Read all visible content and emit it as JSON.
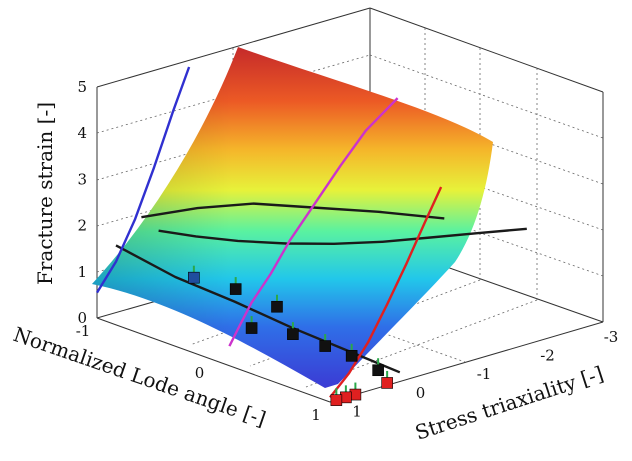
{
  "chart_data": {
    "type": "surface3d",
    "title": "",
    "zlabel": "Fracture strain [-]",
    "xlabel": "Stress triaxiality [-]",
    "ylabel": "Normalized Lode angle [-]",
    "z_ticks": [
      "0",
      "1",
      "2",
      "3",
      "4",
      "5"
    ],
    "x_ticks": [
      "-3",
      "-2",
      "-1",
      "0",
      "1"
    ],
    "y_ticks": [
      "-1",
      "0",
      "1"
    ],
    "z_range": [
      0,
      5
    ],
    "x_range": [
      1.3,
      -3
    ],
    "y_range": [
      -1,
      1
    ],
    "grid": true,
    "surface_colormap": "jet",
    "curves": [
      {
        "color": "#1a1a1a",
        "points": [
          [
            0.33,
            -1,
            1.5
          ],
          [
            0.2,
            -0.75,
            1.55
          ],
          [
            0,
            -0.5,
            1.6
          ],
          [
            -0.3,
            -0.25,
            1.65
          ],
          [
            -0.6,
            0,
            1.75
          ],
          [
            -0.9,
            0.25,
            1.9
          ],
          [
            -1.2,
            0.5,
            2.1
          ],
          [
            -1.5,
            0.75,
            2.3
          ],
          [
            -1.8,
            1,
            2.5
          ]
        ]
      },
      {
        "color": "#1a1a1a",
        "points": [
          [
            0.6,
            -1,
            1.9
          ],
          [
            0.45,
            -0.6,
            2.4
          ],
          [
            0.3,
            -0.2,
            2.8
          ],
          [
            0.1,
            0.2,
            3.0
          ],
          [
            -0.2,
            0.6,
            3.15
          ],
          [
            -0.5,
            1,
            3.25
          ]
        ]
      },
      {
        "color": "#1a1a1a",
        "points": [
          [
            1.0,
            -1,
            1.45
          ],
          [
            0.8,
            -0.6,
            1.05
          ],
          [
            0.6,
            -0.2,
            0.8
          ],
          [
            0.45,
            0.2,
            0.55
          ],
          [
            0.3,
            0.6,
            0.35
          ],
          [
            0.2,
            1,
            0.2
          ]
        ]
      },
      {
        "color": "#cc33cc",
        "points": [
          [
            1.05,
            0,
            0.2
          ],
          [
            0.9,
            0,
            0.55
          ],
          [
            0.7,
            0,
            1.0
          ],
          [
            0.4,
            0,
            1.5
          ],
          [
            0.1,
            0,
            2.1
          ],
          [
            -0.3,
            0,
            2.75
          ],
          [
            -0.7,
            0,
            3.4
          ],
          [
            -1.1,
            0,
            4.0
          ],
          [
            -1.6,
            0,
            4.5
          ]
        ]
      },
      {
        "color": "#3030d0",
        "points": [
          [
            1.3,
            -1,
            0.55
          ],
          [
            1.0,
            -1,
            1.1
          ],
          [
            0.7,
            -1,
            1.9
          ],
          [
            0.4,
            -1,
            2.9
          ],
          [
            0.1,
            -1,
            4.0
          ],
          [
            -0.15,
            -1,
            4.85
          ]
        ]
      },
      {
        "color": "#e02020",
        "points": [
          [
            1.3,
            1,
            0.1
          ],
          [
            1.0,
            1,
            0.5
          ],
          [
            0.7,
            1,
            1.05
          ],
          [
            0.4,
            1,
            1.75
          ],
          [
            0.1,
            1,
            2.5
          ],
          [
            -0.2,
            1,
            3.3
          ],
          [
            -0.45,
            1,
            3.95
          ]
        ]
      }
    ],
    "markers": [
      {
        "x": 0.6,
        "y": -0.55,
        "z": 1.0,
        "color": "#1f4e9e"
      },
      {
        "x": 0.4,
        "y": -0.3,
        "z": 0.9,
        "color": "#111111"
      },
      {
        "x": 0.3,
        "y": 0.0,
        "z": 0.75,
        "color": "#111111"
      },
      {
        "x": 0.7,
        "y": 0.0,
        "z": 0.45,
        "color": "#111111"
      },
      {
        "x": 0.6,
        "y": 0.3,
        "z": 0.55,
        "color": "#111111"
      },
      {
        "x": 0.55,
        "y": 0.55,
        "z": 0.5,
        "color": "#111111"
      },
      {
        "x": 0.5,
        "y": 0.75,
        "z": 0.45,
        "color": "#111111"
      },
      {
        "x": 0.45,
        "y": 0.95,
        "z": 0.3,
        "color": "#111111"
      },
      {
        "x": 0.4,
        "y": 1.0,
        "z": 0.05,
        "color": "#e02020"
      },
      {
        "x": 0.9,
        "y": 1.0,
        "z": 0.0,
        "color": "#e02020"
      },
      {
        "x": 1.05,
        "y": 1.0,
        "z": 0.0,
        "color": "#e02020"
      },
      {
        "x": 1.2,
        "y": 1.0,
        "z": 0.0,
        "color": "#e02020"
      }
    ]
  }
}
